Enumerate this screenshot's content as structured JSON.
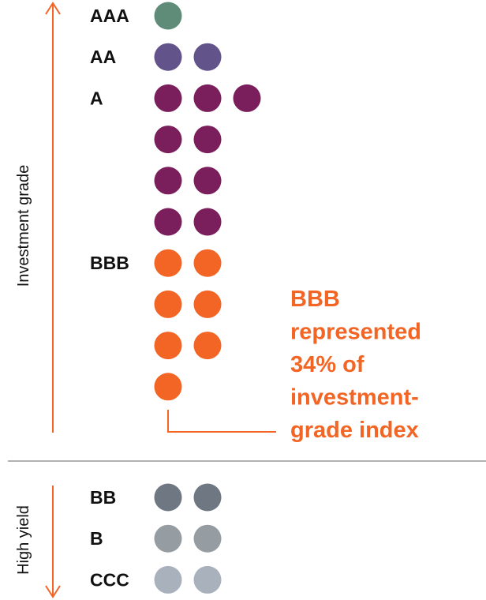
{
  "chart_data": {
    "type": "dot-plot",
    "groups": [
      {
        "name": "Investment grade",
        "ratings": [
          {
            "label": "AAA",
            "rows": [
              1
            ],
            "color": "#5E8C78"
          },
          {
            "label": "AA",
            "rows": [
              2
            ],
            "color": "#62538A"
          },
          {
            "label": "A",
            "rows": [
              3,
              2,
              2,
              2
            ],
            "color": "#7A1F5C"
          },
          {
            "label": "BBB",
            "rows": [
              2,
              2,
              2,
              1
            ],
            "color": "#F26524"
          }
        ]
      },
      {
        "name": "High yield",
        "ratings": [
          {
            "label": "BB",
            "rows": [
              2
            ],
            "color": "#6E7782"
          },
          {
            "label": "B",
            "rows": [
              2
            ],
            "color": "#959DA3"
          },
          {
            "label": "CCC",
            "rows": [
              2
            ],
            "color": "#A8B1BC"
          }
        ]
      }
    ],
    "annotation": {
      "lines": [
        "BBB",
        "represented",
        "34% of",
        "investment-",
        "grade index"
      ],
      "color": "#F26524"
    },
    "colors": {
      "divider": "#999999",
      "axis_arrow": "#F26524"
    }
  }
}
